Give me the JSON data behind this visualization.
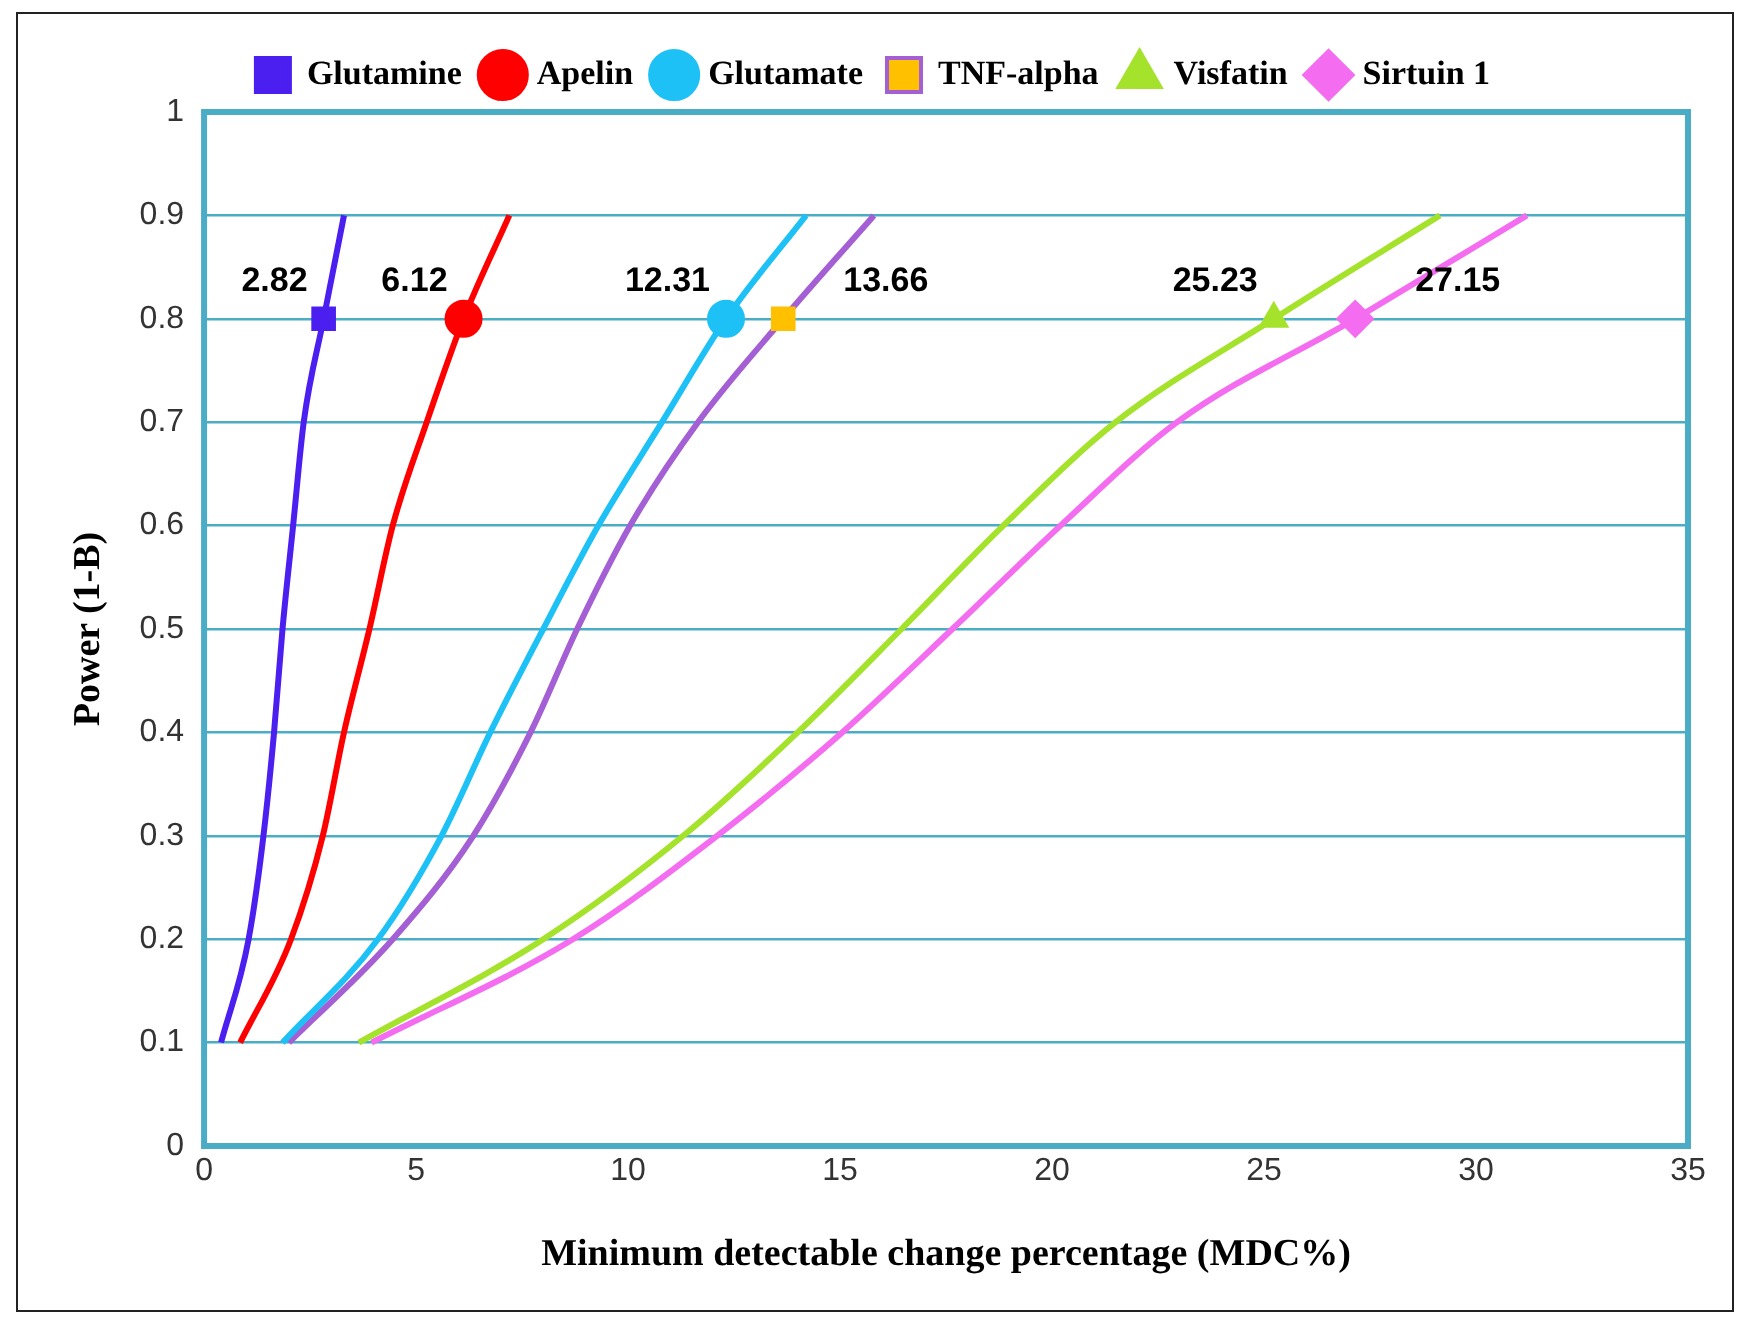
{
  "chart_data": {
    "type": "line",
    "xlabel": "Minimum detectable change percentage (MDC%)",
    "ylabel": "Power (1-B)",
    "xlim": [
      0,
      35
    ],
    "xticks": [
      0,
      5,
      10,
      15,
      20,
      25,
      30,
      35
    ],
    "ylim": [
      0,
      1
    ],
    "yticks": [
      0,
      0.1,
      0.2,
      0.3,
      0.4,
      0.5,
      0.6,
      0.7,
      0.8,
      0.9,
      1
    ],
    "grid": "y",
    "legend": "top",
    "series": [
      {
        "name": "Glutamine",
        "color": "#4a1ff0",
        "x": [
          0.4,
          1.05,
          1.4,
          1.65,
          1.85,
          2.1,
          2.35,
          2.82,
          3.3
        ],
        "values": [
          0.1,
          0.2,
          0.3,
          0.4,
          0.5,
          0.6,
          0.7,
          0.8,
          0.9
        ]
      },
      {
        "type": "scatter",
        "color": "#4a1ff0",
        "marker": "square",
        "x": [
          2.82
        ],
        "values": [
          0.8
        ]
      },
      {
        "name": "Apelin",
        "color": "#ff0000",
        "x": [
          0.85,
          2.05,
          2.8,
          3.3,
          3.9,
          4.45,
          5.25,
          6.12,
          7.2
        ],
        "values": [
          0.1,
          0.2,
          0.3,
          0.4,
          0.5,
          0.6,
          0.7,
          0.8,
          0.9
        ]
      },
      {
        "type": "scatter",
        "color": "#ff0000",
        "marker": "circle",
        "x": [
          6.12
        ],
        "values": [
          0.8
        ]
      },
      {
        "name": "Glutamate",
        "color": "#1ec1f5",
        "x": [
          1.85,
          4.1,
          5.6,
          6.75,
          8.0,
          9.3,
          10.8,
          12.31,
          14.2
        ],
        "values": [
          0.1,
          0.2,
          0.3,
          0.4,
          0.5,
          0.6,
          0.7,
          0.8,
          0.9
        ]
      },
      {
        "type": "scatter",
        "color": "#1ec1f5",
        "marker": "circle",
        "x": [
          12.31
        ],
        "values": [
          0.8
        ]
      },
      {
        "name": "TNF-alpha",
        "color": "#a45fd4",
        "x": [
          2.0,
          4.45,
          6.35,
          7.7,
          8.8,
          10.05,
          11.65,
          13.66,
          15.8
        ],
        "values": [
          0.1,
          0.2,
          0.3,
          0.4,
          0.5,
          0.6,
          0.7,
          0.8,
          0.9
        ]
      },
      {
        "type": "scatter",
        "color": "#ffc000",
        "marker": "square",
        "x": [
          13.66
        ],
        "values": [
          0.8
        ]
      },
      {
        "name": "Visfatin",
        "color": "#a4e22c",
        "x": [
          3.65,
          8.0,
          11.3,
          14.0,
          16.45,
          18.85,
          21.5,
          25.23,
          29.15
        ],
        "values": [
          0.1,
          0.2,
          0.3,
          0.4,
          0.5,
          0.6,
          0.7,
          0.8,
          0.9
        ]
      },
      {
        "type": "scatter",
        "color": "#a4e22c",
        "marker": "triangle",
        "x": [
          25.23
        ],
        "values": [
          0.8
        ]
      },
      {
        "name": "Sirtuin 1",
        "color": "#f46cf0",
        "x": [
          3.95,
          8.7,
          12.1,
          15.05,
          17.65,
          20.2,
          22.95,
          27.15,
          31.2
        ],
        "values": [
          0.1,
          0.2,
          0.3,
          0.4,
          0.5,
          0.6,
          0.7,
          0.8,
          0.9
        ]
      },
      {
        "type": "scatter",
        "color": "#f46cf0",
        "marker": "diamond",
        "x": [
          27.15
        ],
        "values": [
          0.8
        ]
      }
    ],
    "annotations": [
      {
        "text": "2.82",
        "x": 2.82,
        "y": 0.8
      },
      {
        "text": "6.12",
        "x": 6.12,
        "y": 0.8
      },
      {
        "text": "12.31",
        "x": 12.31,
        "y": 0.8
      },
      {
        "text": "13.66",
        "x": 13.66,
        "y": 0.8
      },
      {
        "text": "25.23",
        "x": 25.23,
        "y": 0.8
      },
      {
        "text": "27.15",
        "x": 27.15,
        "y": 0.8
      }
    ]
  }
}
